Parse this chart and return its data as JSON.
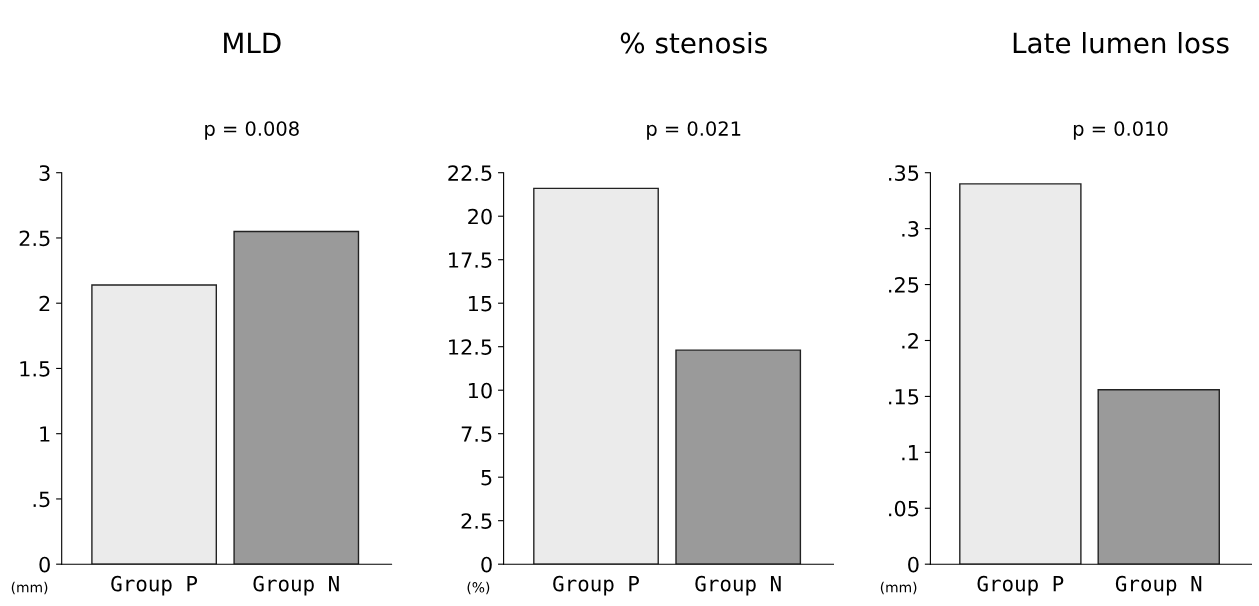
{
  "chart_data": [
    {
      "type": "bar",
      "title": "MLD",
      "annotations": [
        "p = 0.008"
      ],
      "ylabel": "(mm)",
      "categories": [
        "Group P",
        "Group N"
      ],
      "values": [
        2.14,
        2.55
      ],
      "colors": [
        "#ebebeb",
        "#9a9a9a"
      ],
      "ylim": [
        0,
        3
      ],
      "yticks": [
        0,
        {
          "value": 0.5,
          "label": ".5"
        },
        1,
        1.5,
        2,
        2.5,
        3
      ],
      "grid": false,
      "legend": false
    },
    {
      "type": "bar",
      "title": "% stenosis",
      "annotations": [
        "p = 0.021"
      ],
      "ylabel": "(%)",
      "categories": [
        "Group P",
        "Group N"
      ],
      "values": [
        21.6,
        12.3
      ],
      "colors": [
        "#ebebeb",
        "#9a9a9a"
      ],
      "ylim": [
        0,
        22.5
      ],
      "yticks": [
        0,
        2.5,
        5,
        7.5,
        10,
        12.5,
        15,
        17.5,
        20,
        22.5
      ],
      "grid": false,
      "legend": false
    },
    {
      "type": "bar",
      "title": "Late lumen loss",
      "annotations": [
        "p = 0.010"
      ],
      "ylabel": "(mm)",
      "categories": [
        "Group P",
        "Group N"
      ],
      "values": [
        0.34,
        0.156
      ],
      "colors": [
        "#ebebeb",
        "#9a9a9a"
      ],
      "ylim": [
        0,
        0.35
      ],
      "yticks": [
        0,
        {
          "value": 0.05,
          "label": ".05"
        },
        {
          "value": 0.1,
          "label": ".1"
        },
        {
          "value": 0.15,
          "label": ".15"
        },
        {
          "value": 0.2,
          "label": ".2"
        },
        {
          "value": 0.25,
          "label": ".25"
        },
        {
          "value": 0.3,
          "label": ".3"
        },
        {
          "value": 0.35,
          "label": ".35"
        }
      ],
      "grid": false,
      "legend": false
    }
  ]
}
